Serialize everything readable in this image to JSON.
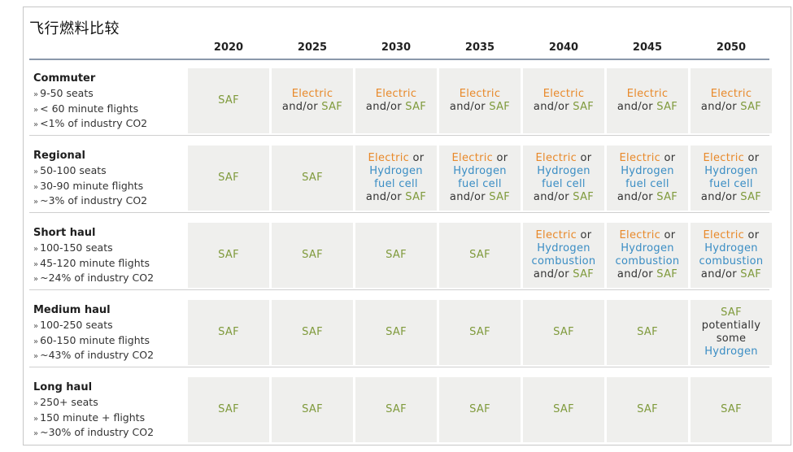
{
  "title": "飞行燃料比较",
  "years": [
    "2020",
    "2025",
    "2030",
    "2035",
    "2040",
    "2045",
    "2050"
  ],
  "colors": {
    "saf": "#7f9a3c",
    "electric": "#e8892a",
    "hydrogen": "#3a8dc4",
    "cell_bg": "#efefed"
  },
  "rows": [
    {
      "category": "Commuter",
      "bullets": [
        "9-50 seats",
        "< 60 minute flights",
        "<1% of industry CO2"
      ],
      "cells": [
        [
          [
            {
              "t": "SAF",
              "c": "saf"
            }
          ]
        ],
        [
          [
            {
              "t": "Electric",
              "c": "el"
            }
          ],
          [
            {
              "t": "and/or ",
              "c": "plain"
            },
            {
              "t": "SAF",
              "c": "saf"
            }
          ]
        ],
        [
          [
            {
              "t": "Electric",
              "c": "el"
            }
          ],
          [
            {
              "t": "and/or ",
              "c": "plain"
            },
            {
              "t": "SAF",
              "c": "saf"
            }
          ]
        ],
        [
          [
            {
              "t": "Electric",
              "c": "el"
            }
          ],
          [
            {
              "t": "and/or ",
              "c": "plain"
            },
            {
              "t": "SAF",
              "c": "saf"
            }
          ]
        ],
        [
          [
            {
              "t": "Electric",
              "c": "el"
            }
          ],
          [
            {
              "t": "and/or ",
              "c": "plain"
            },
            {
              "t": "SAF",
              "c": "saf"
            }
          ]
        ],
        [
          [
            {
              "t": "Electric",
              "c": "el"
            }
          ],
          [
            {
              "t": "and/or ",
              "c": "plain"
            },
            {
              "t": "SAF",
              "c": "saf"
            }
          ]
        ],
        [
          [
            {
              "t": "Electric",
              "c": "el"
            }
          ],
          [
            {
              "t": "and/or ",
              "c": "plain"
            },
            {
              "t": "SAF",
              "c": "saf"
            }
          ]
        ]
      ]
    },
    {
      "category": "Regional",
      "bullets": [
        "50-100 seats",
        "30-90 minute flights",
        "~3% of industry CO2"
      ],
      "cells": [
        [
          [
            {
              "t": "SAF",
              "c": "saf"
            }
          ]
        ],
        [
          [
            {
              "t": "SAF",
              "c": "saf"
            }
          ]
        ],
        [
          [
            {
              "t": "Electric",
              "c": "el"
            },
            {
              "t": " or",
              "c": "plain"
            }
          ],
          [
            {
              "t": "Hydrogen",
              "c": "hy"
            }
          ],
          [
            {
              "t": "fuel cell",
              "c": "hy"
            }
          ],
          [
            {
              "t": "and/or ",
              "c": "plain"
            },
            {
              "t": "SAF",
              "c": "saf"
            }
          ]
        ],
        [
          [
            {
              "t": "Electric",
              "c": "el"
            },
            {
              "t": " or",
              "c": "plain"
            }
          ],
          [
            {
              "t": "Hydrogen",
              "c": "hy"
            }
          ],
          [
            {
              "t": "fuel cell",
              "c": "hy"
            }
          ],
          [
            {
              "t": "and/or ",
              "c": "plain"
            },
            {
              "t": "SAF",
              "c": "saf"
            }
          ]
        ],
        [
          [
            {
              "t": "Electric",
              "c": "el"
            },
            {
              "t": " or",
              "c": "plain"
            }
          ],
          [
            {
              "t": "Hydrogen",
              "c": "hy"
            }
          ],
          [
            {
              "t": "fuel cell",
              "c": "hy"
            }
          ],
          [
            {
              "t": "and/or ",
              "c": "plain"
            },
            {
              "t": "SAF",
              "c": "saf"
            }
          ]
        ],
        [
          [
            {
              "t": "Electric",
              "c": "el"
            },
            {
              "t": " or",
              "c": "plain"
            }
          ],
          [
            {
              "t": "Hydrogen",
              "c": "hy"
            }
          ],
          [
            {
              "t": "fuel cell",
              "c": "hy"
            }
          ],
          [
            {
              "t": "and/or ",
              "c": "plain"
            },
            {
              "t": "SAF",
              "c": "saf"
            }
          ]
        ],
        [
          [
            {
              "t": "Electric",
              "c": "el"
            },
            {
              "t": " or",
              "c": "plain"
            }
          ],
          [
            {
              "t": "Hydrogen",
              "c": "hy"
            }
          ],
          [
            {
              "t": "fuel cell",
              "c": "hy"
            }
          ],
          [
            {
              "t": "and/or ",
              "c": "plain"
            },
            {
              "t": "SAF",
              "c": "saf"
            }
          ]
        ]
      ]
    },
    {
      "category": "Short haul",
      "bullets": [
        "100-150 seats",
        "45-120 minute flights",
        "~24% of industry CO2"
      ],
      "cells": [
        [
          [
            {
              "t": "SAF",
              "c": "saf"
            }
          ]
        ],
        [
          [
            {
              "t": "SAF",
              "c": "saf"
            }
          ]
        ],
        [
          [
            {
              "t": "SAF",
              "c": "saf"
            }
          ]
        ],
        [
          [
            {
              "t": "SAF",
              "c": "saf"
            }
          ]
        ],
        [
          [
            {
              "t": "Electric",
              "c": "el"
            },
            {
              "t": " or",
              "c": "plain"
            }
          ],
          [
            {
              "t": "Hydrogen",
              "c": "hy"
            }
          ],
          [
            {
              "t": "combustion",
              "c": "hy"
            }
          ],
          [
            {
              "t": "and/or ",
              "c": "plain"
            },
            {
              "t": "SAF",
              "c": "saf"
            }
          ]
        ],
        [
          [
            {
              "t": "Electric",
              "c": "el"
            },
            {
              "t": " or",
              "c": "plain"
            }
          ],
          [
            {
              "t": "Hydrogen",
              "c": "hy"
            }
          ],
          [
            {
              "t": "combustion",
              "c": "hy"
            }
          ],
          [
            {
              "t": "and/or ",
              "c": "plain"
            },
            {
              "t": "SAF",
              "c": "saf"
            }
          ]
        ],
        [
          [
            {
              "t": "Electric",
              "c": "el"
            },
            {
              "t": " or",
              "c": "plain"
            }
          ],
          [
            {
              "t": "Hydrogen",
              "c": "hy"
            }
          ],
          [
            {
              "t": "combustion",
              "c": "hy"
            }
          ],
          [
            {
              "t": "and/or ",
              "c": "plain"
            },
            {
              "t": "SAF",
              "c": "saf"
            }
          ]
        ]
      ]
    },
    {
      "category": "Medium haul",
      "bullets": [
        "100-250 seats",
        "60-150 minute flights",
        "~43% of industry CO2"
      ],
      "cells": [
        [
          [
            {
              "t": "SAF",
              "c": "saf"
            }
          ]
        ],
        [
          [
            {
              "t": "SAF",
              "c": "saf"
            }
          ]
        ],
        [
          [
            {
              "t": "SAF",
              "c": "saf"
            }
          ]
        ],
        [
          [
            {
              "t": "SAF",
              "c": "saf"
            }
          ]
        ],
        [
          [
            {
              "t": "SAF",
              "c": "saf"
            }
          ]
        ],
        [
          [
            {
              "t": "SAF",
              "c": "saf"
            }
          ]
        ],
        [
          [
            {
              "t": "SAF",
              "c": "saf"
            }
          ],
          [
            {
              "t": "potentially",
              "c": "plain"
            }
          ],
          [
            {
              "t": "some",
              "c": "plain"
            }
          ],
          [
            {
              "t": "Hydrogen",
              "c": "hy"
            }
          ]
        ]
      ]
    },
    {
      "category": "Long haul",
      "bullets": [
        "250+ seats",
        "150 minute + flights",
        "~30% of industry CO2"
      ],
      "cells": [
        [
          [
            {
              "t": "SAF",
              "c": "saf"
            }
          ]
        ],
        [
          [
            {
              "t": "SAF",
              "c": "saf"
            }
          ]
        ],
        [
          [
            {
              "t": "SAF",
              "c": "saf"
            }
          ]
        ],
        [
          [
            {
              "t": "SAF",
              "c": "saf"
            }
          ]
        ],
        [
          [
            {
              "t": "SAF",
              "c": "saf"
            }
          ]
        ],
        [
          [
            {
              "t": "SAF",
              "c": "saf"
            }
          ]
        ],
        [
          [
            {
              "t": "SAF",
              "c": "saf"
            }
          ]
        ]
      ]
    }
  ]
}
